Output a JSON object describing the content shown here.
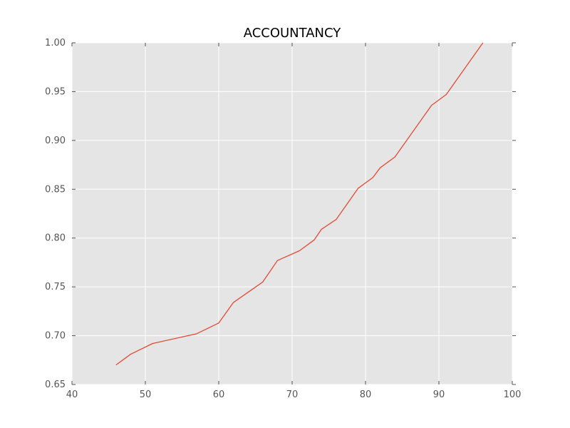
{
  "chart_data": {
    "type": "line",
    "title": "ACCOUNTANCY",
    "xlabel": "",
    "ylabel": "",
    "xlim": [
      40,
      100
    ],
    "ylim": [
      0.65,
      1.0
    ],
    "x_ticks": [
      40,
      50,
      60,
      70,
      80,
      90,
      100
    ],
    "y_ticks": [
      0.65,
      0.7,
      0.75,
      0.8,
      0.85,
      0.9,
      0.95,
      1.0
    ],
    "x_tick_labels": [
      "40",
      "50",
      "60",
      "70",
      "80",
      "90",
      "100"
    ],
    "y_tick_labels": [
      "0.65",
      "0.70",
      "0.75",
      "0.80",
      "0.85",
      "0.90",
      "0.95",
      "1.00"
    ],
    "grid": true,
    "legend": "none",
    "series": [
      {
        "x": [
          46,
          48,
          51,
          57,
          60,
          62,
          66,
          68,
          71,
          73,
          74,
          76,
          79,
          81,
          82,
          84,
          89,
          91,
          96
        ],
        "y": [
          0.67,
          0.681,
          0.692,
          0.702,
          0.713,
          0.734,
          0.755,
          0.777,
          0.787,
          0.798,
          0.809,
          0.819,
          0.851,
          0.862,
          0.872,
          0.883,
          0.936,
          0.947,
          1.0
        ]
      }
    ]
  },
  "colors": {
    "line": "#e24a33",
    "plot_background": "#e5e5e5",
    "grid": "#ffffff",
    "tick_text": "#555555",
    "title_text": "#000000"
  }
}
